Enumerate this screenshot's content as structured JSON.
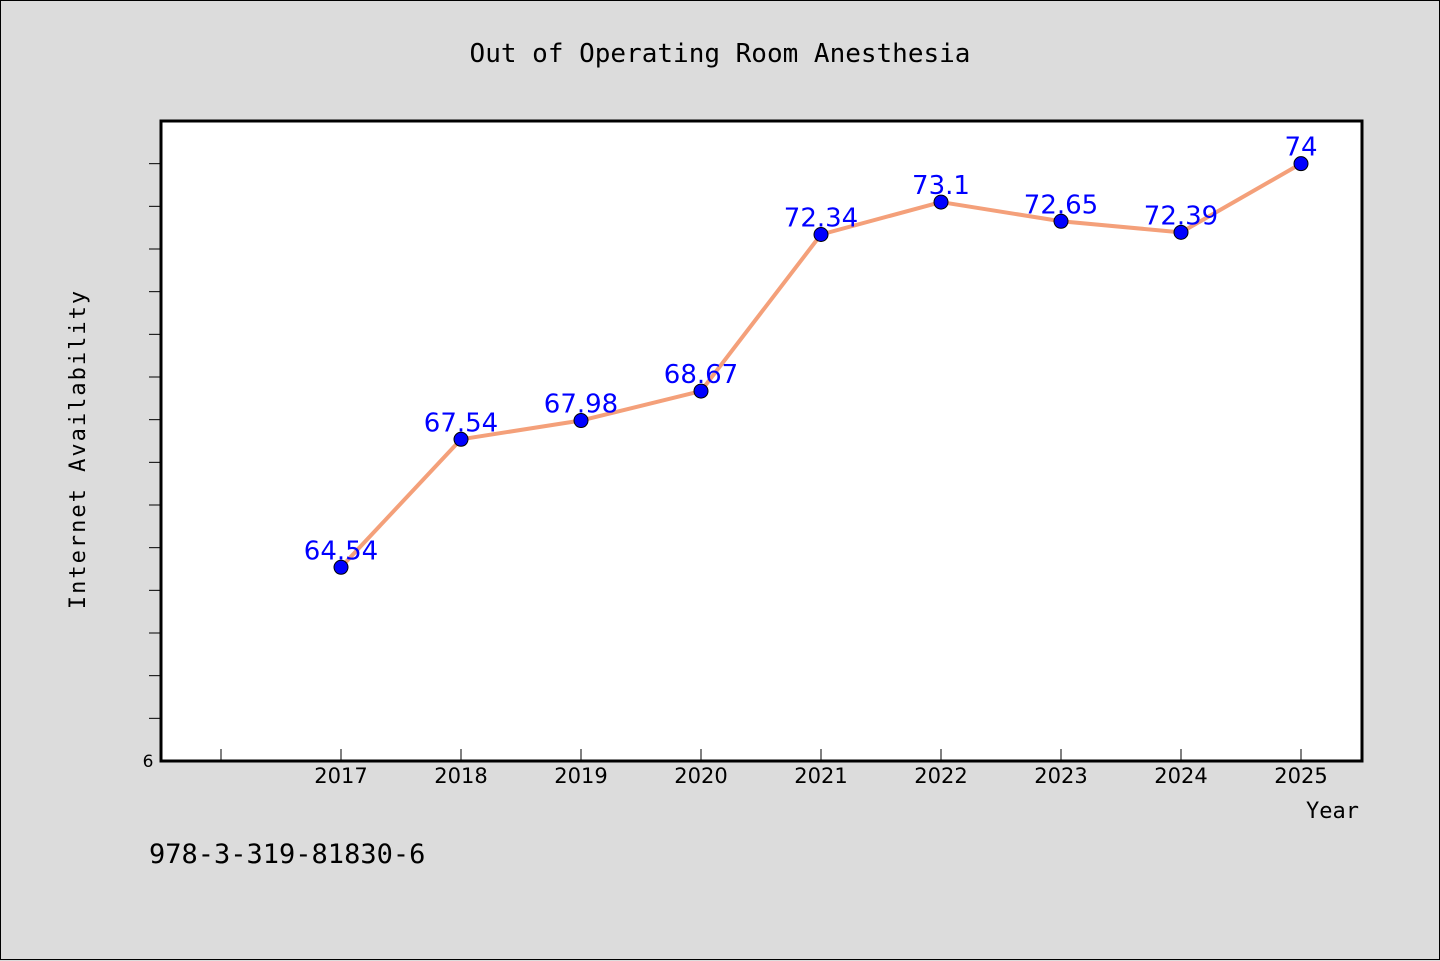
{
  "chart_data": {
    "type": "line",
    "title": "Out of Operating Room Anesthesia",
    "xlabel": "Year",
    "ylabel": "Internet Availability",
    "categories": [
      "2017",
      "2018",
      "2019",
      "2020",
      "2021",
      "2022",
      "2023",
      "2024",
      "2025"
    ],
    "series": [
      {
        "values": [
          64.54,
          67.54,
          67.98,
          68.67,
          72.34,
          73.1,
          72.65,
          72.39,
          74
        ],
        "labels": [
          "64.54",
          "67.54",
          "67.98",
          "68.67",
          "72.34",
          "73.1",
          "72.65",
          "72.39",
          "74"
        ],
        "line_color": "#f4a07a",
        "marker_color": "#0000ff"
      }
    ],
    "ylim": [
      60,
      75
    ],
    "y_origin_label": "6",
    "grid": false,
    "legend": "none"
  },
  "footer": {
    "isbn": "978-3-319-81830-6"
  },
  "colors": {
    "background": "#dcdcdc",
    "plot_background": "#ffffff",
    "line": "#f4a07a",
    "marker": "#0000ff",
    "data_label": "#0000ff"
  }
}
